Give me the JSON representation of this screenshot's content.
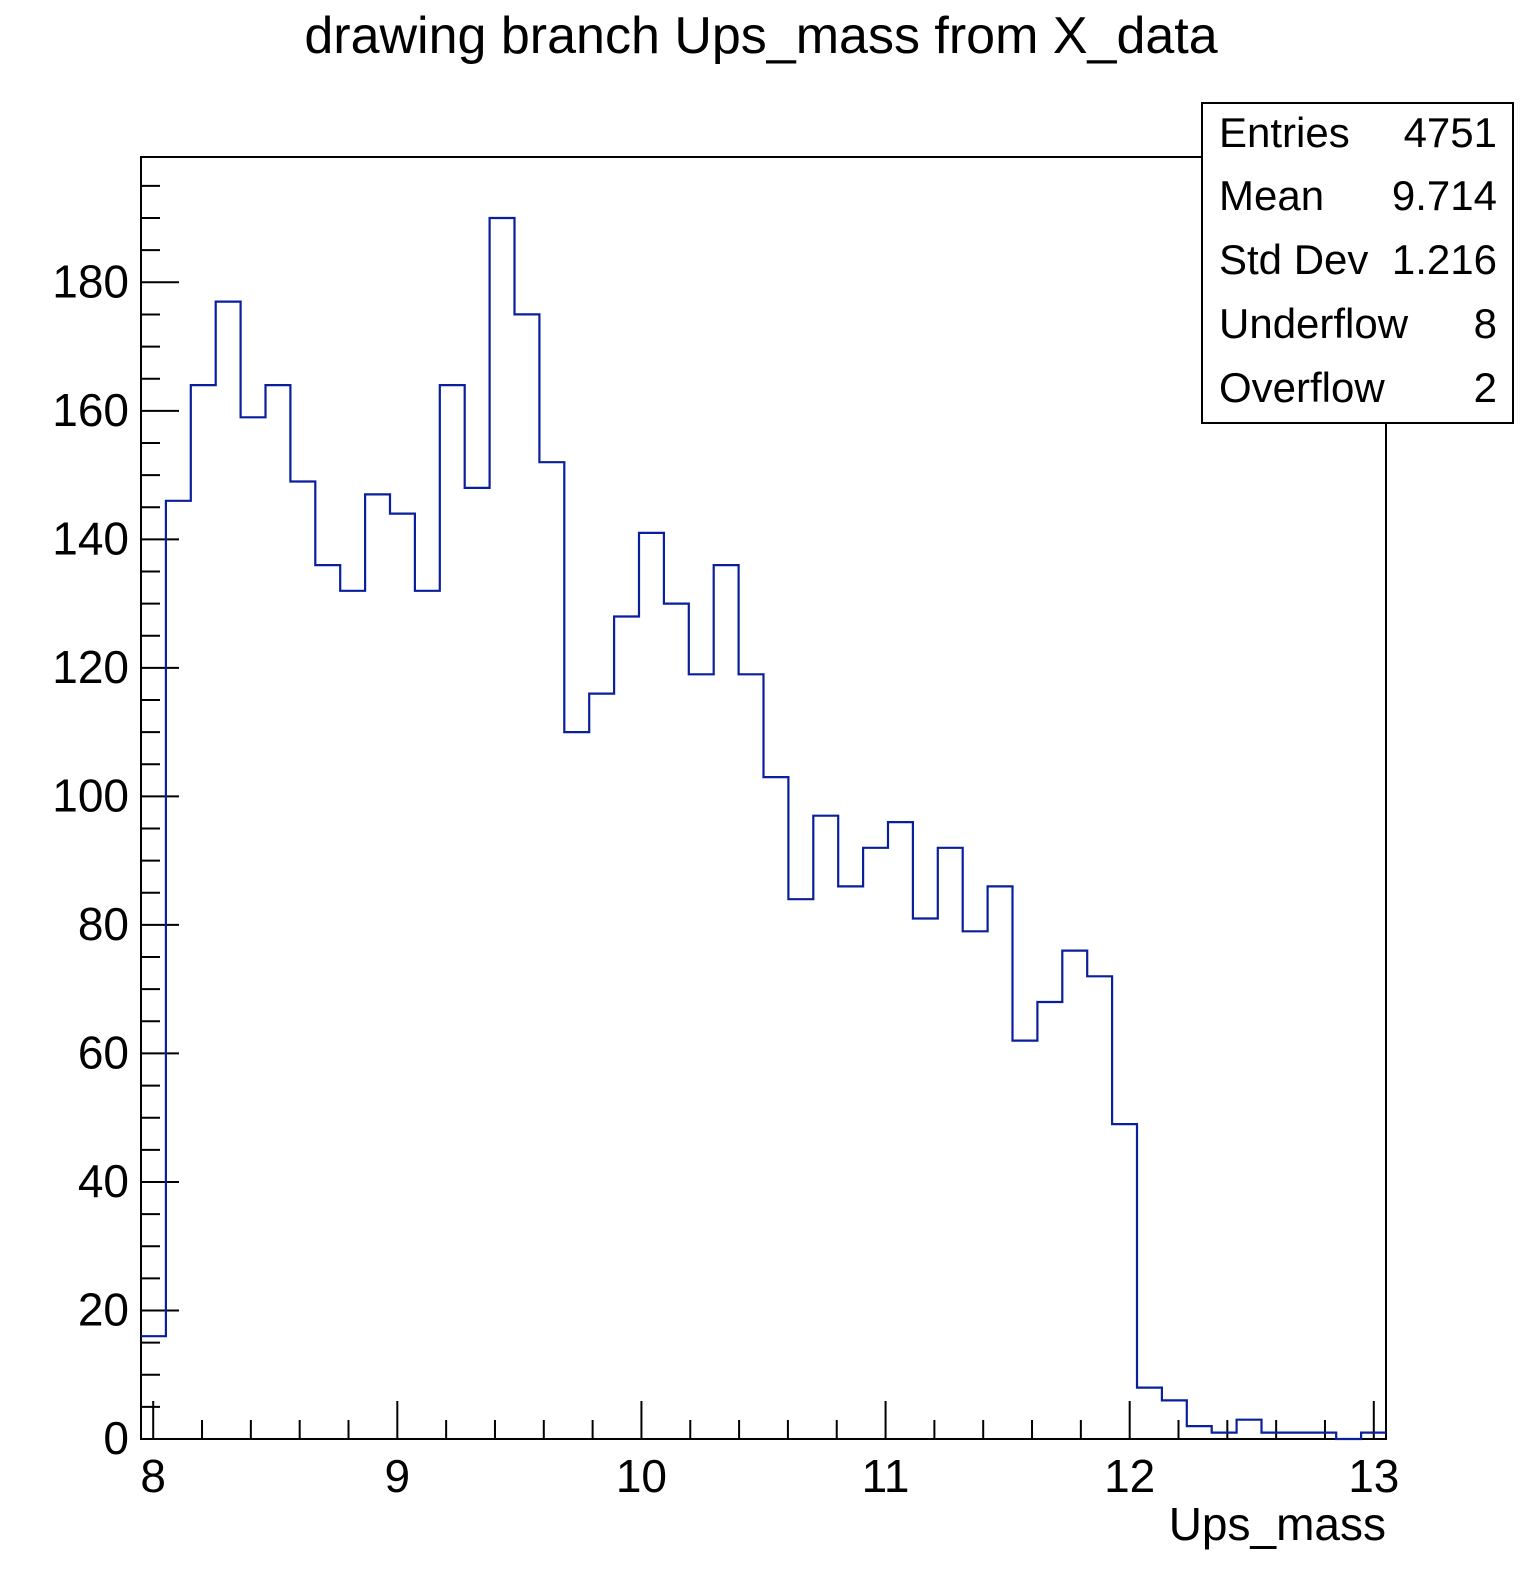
{
  "chart_data": {
    "type": "histogram",
    "title": "drawing branch Ups_mass from X_data",
    "xlabel": "Ups_mass",
    "ylabel": "",
    "xlim": [
      7.95,
      13.05
    ],
    "ylim": [
      0,
      199.5
    ],
    "bin_edges_start": 7.95,
    "bin_width": 0.102,
    "values": [
      16,
      146,
      164,
      177,
      159,
      164,
      149,
      136,
      132,
      147,
      144,
      132,
      164,
      148,
      190,
      175,
      152,
      110,
      116,
      128,
      141,
      130,
      119,
      136,
      119,
      103,
      84,
      97,
      86,
      92,
      96,
      81,
      92,
      79,
      86,
      62,
      68,
      76,
      72,
      49,
      8,
      6,
      2,
      1,
      3,
      1,
      1,
      1,
      0,
      1
    ],
    "x_ticks": [
      "8",
      "9",
      "10",
      "11",
      "12",
      "13"
    ],
    "y_ticks": [
      "0",
      "20",
      "40",
      "60",
      "80",
      "100",
      "120",
      "140",
      "160",
      "180"
    ],
    "line_color": "#0a1f9c",
    "grid": false,
    "stats_box": {
      "position": "top-right",
      "rows": [
        {
          "label": "Entries",
          "value": "4751"
        },
        {
          "label": "Mean",
          "value": "9.714"
        },
        {
          "label": "Std Dev",
          "value": "1.216"
        },
        {
          "label": "Underflow",
          "value": "8"
        },
        {
          "label": "Overflow",
          "value": "2"
        }
      ]
    }
  }
}
